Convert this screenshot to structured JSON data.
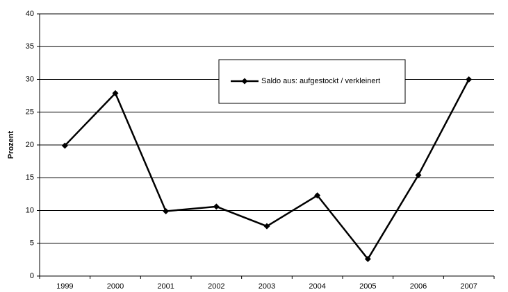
{
  "chart_data": {
    "type": "line",
    "y_label": "Prozent",
    "categories": [
      "1999",
      "2000",
      "2001",
      "2002",
      "2003",
      "2004",
      "2005",
      "2006",
      "2007"
    ],
    "series": [
      {
        "name": "Saldo aus: aufgestockt / verkleinert",
        "color": "#000000",
        "values": [
          19.9,
          27.9,
          9.9,
          10.6,
          7.6,
          12.3,
          2.6,
          15.4,
          30.0
        ]
      }
    ],
    "ylim": [
      0,
      40
    ],
    "yticks": [
      0,
      5,
      10,
      15,
      20,
      25,
      30,
      35,
      40
    ],
    "grid": true
  }
}
